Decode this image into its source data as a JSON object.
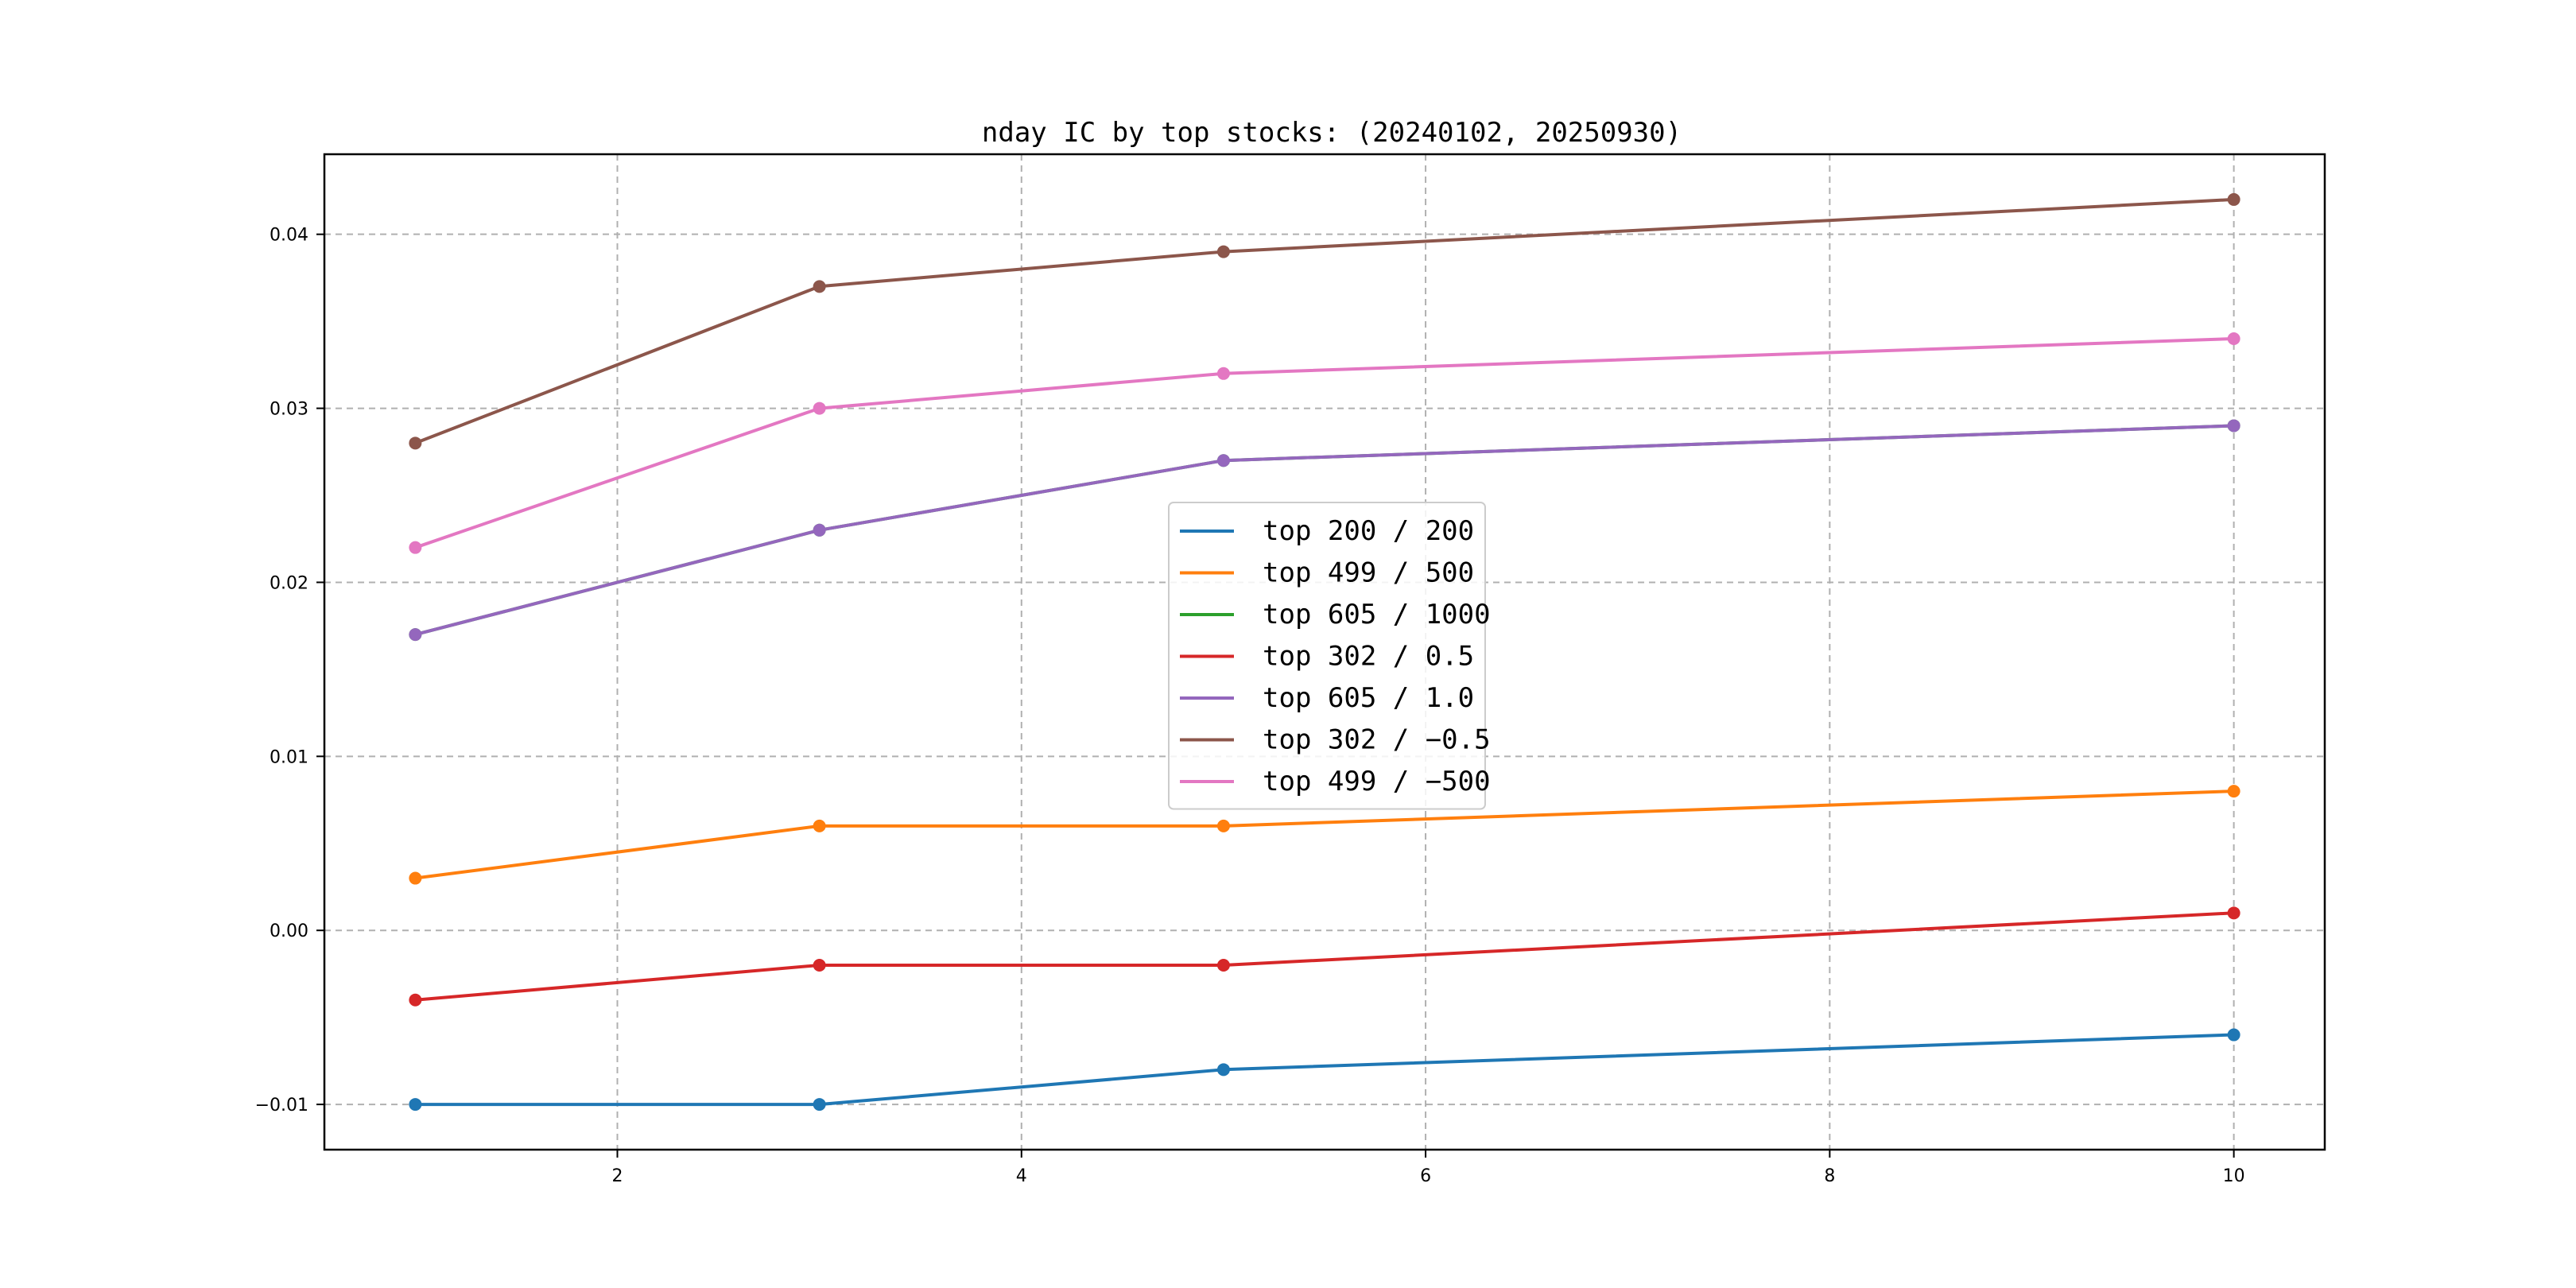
{
  "chart_data": {
    "type": "line",
    "title": "nday IC by top stocks: (20240102, 20250930)",
    "xlabel": "",
    "ylabel": "",
    "x": [
      1,
      3,
      5,
      10
    ],
    "xlim": [
      0.55,
      10.45
    ],
    "ylim": [
      -0.0126,
      0.0446
    ],
    "xticks": [
      2,
      4,
      6,
      8,
      10
    ],
    "xtick_labels": [
      "2",
      "4",
      "6",
      "8",
      "10"
    ],
    "yticks": [
      -0.01,
      0.0,
      0.01,
      0.02,
      0.03,
      0.04
    ],
    "ytick_labels": [
      "−0.01",
      "0.00",
      "0.01",
      "0.02",
      "0.03",
      "0.04"
    ],
    "grid": true,
    "legend_placement": "center",
    "series": [
      {
        "name": "top 200 / 200",
        "color": "#1f77b4",
        "values": [
          -0.01,
          -0.01,
          -0.008,
          -0.006
        ]
      },
      {
        "name": "top 499 / 500",
        "color": "#ff7f0e",
        "values": [
          0.003,
          0.006,
          0.006,
          0.008
        ]
      },
      {
        "name": "top 605 / 1000",
        "color": "#2ca02c",
        "values": [
          0.017,
          0.023,
          0.027,
          0.029
        ]
      },
      {
        "name": "top 302 / 0.5",
        "color": "#d62728",
        "values": [
          -0.004,
          -0.002,
          -0.002,
          0.001
        ]
      },
      {
        "name": "top 605 / 1.0",
        "color": "#9467bd",
        "values": [
          0.017,
          0.023,
          0.027,
          0.029
        ]
      },
      {
        "name": "top 302 / −0.5",
        "color": "#8c564b",
        "values": [
          0.028,
          0.037,
          0.039,
          0.042
        ]
      },
      {
        "name": "top 499 / −500",
        "color": "#e377c2",
        "values": [
          0.022,
          0.03,
          0.032,
          0.034
        ]
      }
    ]
  }
}
